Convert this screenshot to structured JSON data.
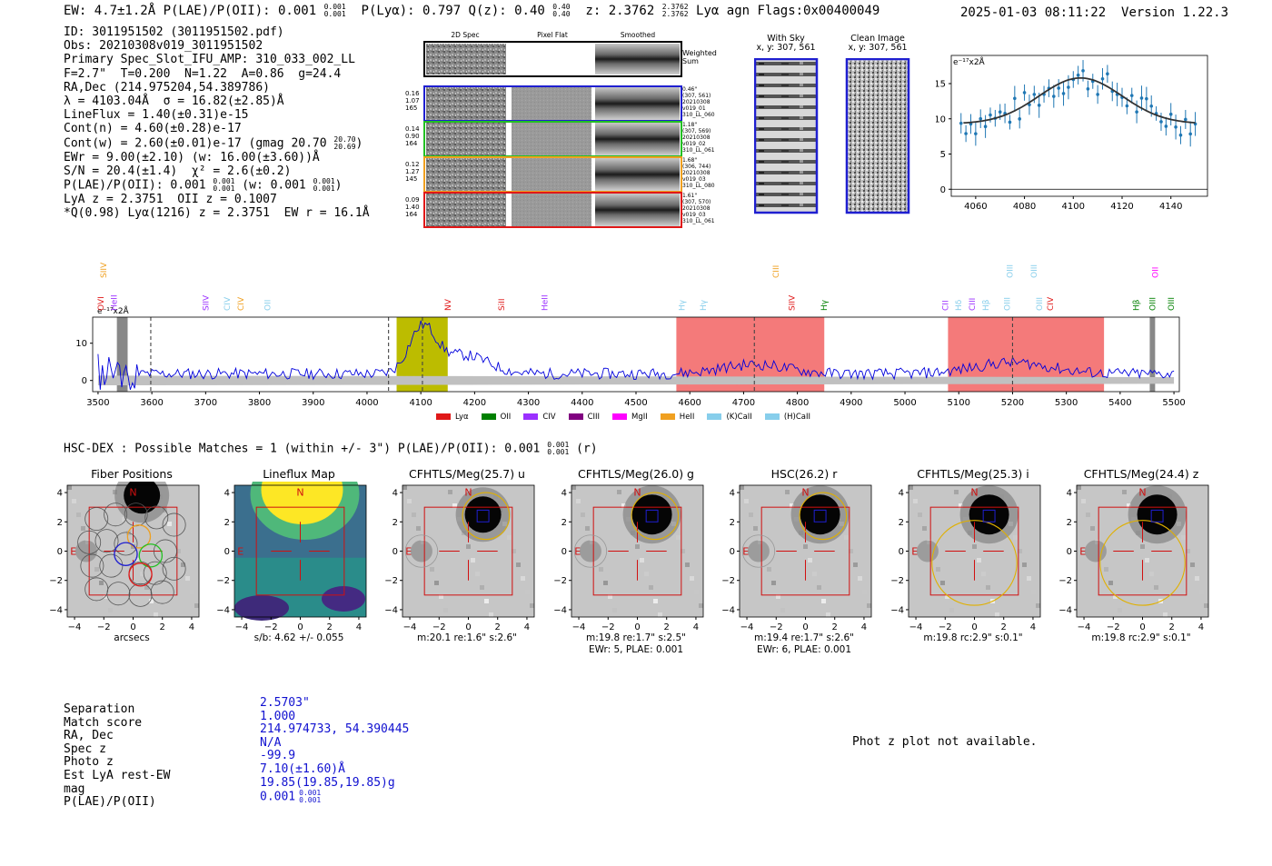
{
  "header": {
    "left": "EW: 4.7±1.2Å  P(LAE)/P(OII): 0.001",
    "plae_frac": [
      "0.001",
      "0.001"
    ],
    "plya": "P(Lyα): 0.797  Q(z): 0.40",
    "qz_frac": [
      "0.40",
      "0.40"
    ],
    "z": "z: 2.3762",
    "z_frac": [
      "2.3762",
      "2.3762"
    ],
    "tail": "Lyα  agn  Flags:0x00400049",
    "timestamp": "2025-01-03 08:11:22",
    "version": "Version 1.22.3"
  },
  "info": {
    "l1": "ID: 3011951502 (3011951502.pdf)",
    "l2": "Obs: 20210308v019_3011951502",
    "l3": "Primary Spec_Slot_IFU_AMP: 310_033_002_LL",
    "l4": "F=2.7\"  T=0.200  N=1.22  A=0.86  g=24.4",
    "l5": "RA,Dec (214.975204,54.389786)",
    "l6": "λ = 4103.04Å  σ = 16.82(±2.85)Å",
    "l7": "LineFlux = 1.40(±0.31)e-15",
    "l8": "Cont(n) = 4.60(±0.28)e-17",
    "l9": "Cont(w) = 2.60(±0.01)e-17 (gmag 20.70",
    "l9_frac": [
      "20.70",
      "20.69"
    ],
    "l9_end": ")",
    "l10": "EWr = 9.00(±2.10) (w: 16.00(±3.60))Å",
    "l11": "S/N = 20.4(±1.4)  χ² = 2.6(±0.2)",
    "l12a": "P(LAE)/P(OII): 0.001",
    "l12_frac1": [
      "0.001",
      "0.001"
    ],
    "l12b": "(w: 0.001",
    "l12_frac2": [
      "0.001",
      "0.001"
    ],
    "l12c": ")",
    "l13": "LyA z = 2.3751  OII z = 0.1007",
    "l14": "*Q(0.98) Lyα(1216) z = 2.3751  EW r = 16.1Å"
  },
  "cutouts": {
    "col_2d": "2D Spec",
    "col_flat": "Pixel Flat",
    "col_smooth": "Smoothed",
    "weighted": "Weighted\nSum",
    "rows": [
      {
        "left": "0.16\n1.07\n165",
        "right": "0.46\"\n(307, 561)\n20210308\nv019_01\n310_LL_060",
        "color": "#1f1fd0"
      },
      {
        "left": "0.14\n0.90\n164",
        "right": "1.18\"\n(307, 569)\n20210308\nv019_02\n310_LL_061",
        "color": "#22c022"
      },
      {
        "left": "0.12\n1.27\n145",
        "right": "1.68\"\n(306, 744)\n20210308\nv019_03\n310_LL_080",
        "color": "#f0a020"
      },
      {
        "left": "0.09\n1.40\n164",
        "right": "1.61\"\n(307, 570)\n20210308\nv019_03\n310_LL_061",
        "color": "#e01818"
      }
    ],
    "with_sky_title": "With Sky",
    "with_sky_xy": "x, y: 307, 561",
    "clean_title": "Clean Image",
    "clean_xy": "x, y: 307, 561"
  },
  "zoom_plot": {
    "unit_label": "e⁻¹⁷x2Å",
    "x_ticks": [
      "4060",
      "4080",
      "4100",
      "4120",
      "4140"
    ],
    "y_ticks": [
      "0",
      "5",
      "10",
      "15"
    ]
  },
  "spectrum": {
    "unit_label": "e⁻¹⁷x2Å",
    "x_ticks": [
      "3500",
      "3600",
      "3700",
      "3800",
      "3900",
      "4000",
      "4100",
      "4200",
      "4300",
      "4400",
      "4500",
      "4600",
      "4700",
      "4800",
      "4900",
      "5000",
      "5100",
      "5200",
      "5300",
      "5400",
      "5500"
    ],
    "y_ticks": [
      "0",
      "10"
    ],
    "top_lines": [
      {
        "label": "SIIV",
        "color": "#f0a020"
      },
      {
        "label": "CIII",
        "color": "#f0a020"
      },
      {
        "label": "OIII",
        "color": "#87ceeb"
      },
      {
        "label": "OIII",
        "color": "#87ceeb"
      },
      {
        "label": "OII",
        "color": "#ff00ff"
      }
    ],
    "lines": [
      {
        "label": "OVI",
        "color": "#e01818"
      },
      {
        "label": "HeII",
        "color": "#9b30ff"
      },
      {
        "label": "SIIV",
        "color": "#9b30ff"
      },
      {
        "label": "CIV",
        "color": "#87ceeb"
      },
      {
        "label": "CIV",
        "color": "#f0a020"
      },
      {
        "label": "OII",
        "color": "#87ceeb"
      },
      {
        "label": "NV",
        "color": "#e01818"
      },
      {
        "label": "SiII",
        "color": "#e01818"
      },
      {
        "label": "HeII",
        "color": "#9b30ff"
      },
      {
        "label": "Hγ",
        "color": "#87ceeb"
      },
      {
        "label": "Hγ",
        "color": "#87ceeb"
      },
      {
        "label": "SIIV",
        "color": "#e01818"
      },
      {
        "label": "Hγ",
        "color": "#008000"
      },
      {
        "label": "CII",
        "color": "#9b30ff"
      },
      {
        "label": "Hδ",
        "color": "#87ceeb"
      },
      {
        "label": "CIII",
        "color": "#9b30ff"
      },
      {
        "label": "Hβ",
        "color": "#87ceeb"
      },
      {
        "label": "OIII",
        "color": "#87ceeb"
      },
      {
        "label": "OIII",
        "color": "#87ceeb"
      },
      {
        "label": "CIV",
        "color": "#e01818"
      },
      {
        "label": "Hβ",
        "color": "#008000"
      },
      {
        "label": "OIII",
        "color": "#008000"
      },
      {
        "label": "OIII",
        "color": "#008000"
      }
    ],
    "legend": [
      {
        "label": "Lyα",
        "color": "#e01818"
      },
      {
        "label": "OII",
        "color": "#008000"
      },
      {
        "label": "CIV",
        "color": "#9b30ff"
      },
      {
        "label": "CIII",
        "color": "#800080"
      },
      {
        "label": "MgII",
        "color": "#ff00ff"
      },
      {
        "label": "HeII",
        "color": "#f0a020"
      },
      {
        "label": "(K)CaII",
        "color": "#87ceeb"
      },
      {
        "label": "(H)CaII",
        "color": "#87ceeb"
      }
    ]
  },
  "hsc": {
    "line": "HSC-DEX : Possible Matches = 1 (within +/- 3\")  P(LAE)/P(OII): 0.001",
    "frac": [
      "0.001",
      "0.001"
    ],
    "tail": "(r)"
  },
  "images": [
    {
      "title": "Fiber Positions",
      "xlabel": "arcsecs",
      "xlabel2": ""
    },
    {
      "title": "Lineflux Map",
      "xlabel": "s/b: 4.62 +/- 0.055",
      "xlabel2": ""
    },
    {
      "title": "CFHTLS/Meg(25.7) u",
      "xlabel": "m:20.1  re:1.6\"  s:2.6\"",
      "xlabel2": ""
    },
    {
      "title": "CFHTLS/Meg(26.0) g",
      "xlabel": "m:19.8  re:1.7\"  s:2.5\"",
      "xlabel2": "EWr: 5, PLAE: 0.001"
    },
    {
      "title": "HSC(26.2) r",
      "xlabel": "m:19.4  re:1.7\"  s:2.6\"",
      "xlabel2": "EWr: 6, PLAE: 0.001"
    },
    {
      "title": "CFHTLS/Meg(25.3) i",
      "xlabel": "m:19.8  rc:2.9\"  s:0.1\"",
      "xlabel2": ""
    },
    {
      "title": "CFHTLS/Meg(24.4) z",
      "xlabel": "m:19.8  rc:2.9\"  s:0.1\"",
      "xlabel2": ""
    }
  ],
  "image_axes": {
    "ticks": [
      "−4",
      "−2",
      "0",
      "2",
      "4"
    ],
    "north": "N",
    "east": "E"
  },
  "match": {
    "labels": [
      "Separation",
      "Match score",
      "RA, Dec",
      "Spec z",
      "Photo z",
      "Est LyA rest-EW",
      "mag",
      "P(LAE)/P(OII)"
    ],
    "values": [
      "2.5703\"",
      "1.000",
      "214.974733, 54.390445",
      "N/A",
      "-99.9",
      "7.10(±1.60)Å",
      "19.85(19.85,19.85)g",
      "0.001"
    ],
    "plae_frac": [
      "0.001",
      "0.001"
    ]
  },
  "photz_msg": "Phot z plot not available."
}
